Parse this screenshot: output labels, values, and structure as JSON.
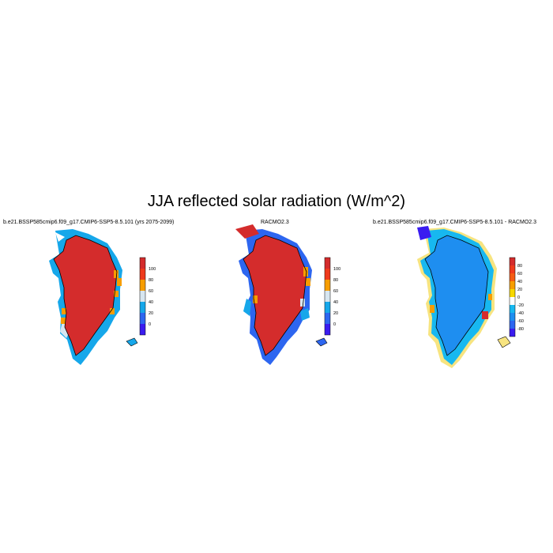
{
  "title": "JJA reflected solar radiation (W/m^2)",
  "panels": [
    {
      "title": "b.e21.BSSP585cmip6.f09_g17.CMIP6-SSP5-8.5.101 (yrs 2075-2099)",
      "colorbar": {
        "labels": [
          "100",
          "80",
          "60",
          "40",
          "20",
          "0"
        ],
        "colors": [
          "#d42c2c",
          "#ef3a1c",
          "#f79d00",
          "#d7e6f0",
          "#16a7ea",
          "#2d66f0",
          "#3a1cf0"
        ]
      }
    },
    {
      "title": "RACMO2.3",
      "colorbar": {
        "labels": [
          "100",
          "80",
          "60",
          "40",
          "20",
          "0"
        ],
        "colors": [
          "#d42c2c",
          "#ef3a1c",
          "#f79d00",
          "#d7e6f0",
          "#16a7ea",
          "#2d66f0",
          "#3a1cf0"
        ]
      }
    },
    {
      "title": "b.e21.BSSP585cmip6.f09_g17.CMIP6-SSP5-8.5.101 - RACMO2.3",
      "colorbar": {
        "labels": [
          "80",
          "60",
          "40",
          "20",
          "0",
          "-20",
          "-40",
          "-60",
          "-80"
        ],
        "colors": [
          "#d42c2c",
          "#ef3a1c",
          "#f55b12",
          "#f79d00",
          "#f7d800",
          "#ffffff",
          "#17b8f0",
          "#1e8ef0",
          "#2d66f0",
          "#3a1cf0"
        ]
      }
    }
  ]
}
